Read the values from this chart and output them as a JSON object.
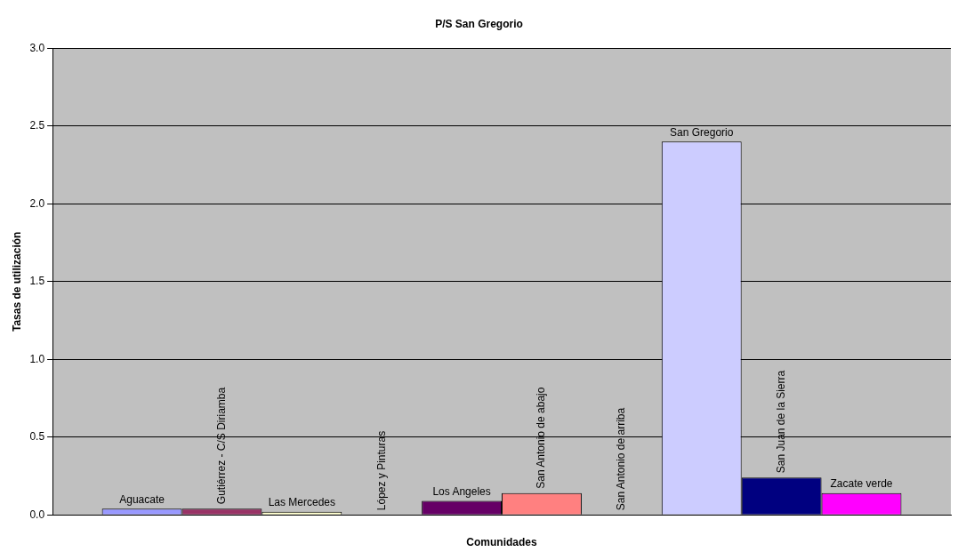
{
  "chart_data": {
    "type": "bar",
    "title": "P/S San Gregorio",
    "xlabel": "Comunidades",
    "ylabel": "Tasas de utilización",
    "categories": [
      null
    ],
    "series": [
      {
        "name": "Aguacate",
        "color": "#9999ff",
        "values": [
          0.04
        ]
      },
      {
        "name": "Gutiérrez - C/S Diriamba",
        "color": "#993366",
        "values": [
          0.04
        ]
      },
      {
        "name": "Las Mercedes",
        "color": "#ffffcc",
        "values": [
          0.02
        ]
      },
      {
        "name": "López y Pinturas",
        "values": [
          0
        ]
      },
      {
        "name": "Los Angeles",
        "color": "#660066",
        "values": [
          0.09
        ]
      },
      {
        "name": "San Antonio de abajo",
        "color": "#ff8080",
        "values": [
          0.14
        ]
      },
      {
        "name": "San Antonio de arriba",
        "values": [
          0
        ]
      },
      {
        "name": "San Gregorio",
        "color": "#ccccff",
        "values": [
          2.4
        ]
      },
      {
        "name": "San Juan de la Sierra",
        "color": "#000080",
        "values": [
          0.24
        ]
      },
      {
        "name": "Zacate verde",
        "color": "#ff00ff",
        "values": [
          0.14
        ]
      }
    ],
    "ylim": [
      0,
      3
    ],
    "yticks": [
      {
        "value": 0,
        "label": "0.0"
      },
      {
        "value": 0.5,
        "label": "0.5"
      },
      {
        "value": 1,
        "label": "1.0"
      },
      {
        "value": 1.5,
        "label": "1.5"
      },
      {
        "value": 2,
        "label": "2.0"
      },
      {
        "value": 2.5,
        "label": "2.5"
      },
      {
        "value": 3,
        "label": "3.0"
      }
    ],
    "grid": "y",
    "legend": false
  }
}
